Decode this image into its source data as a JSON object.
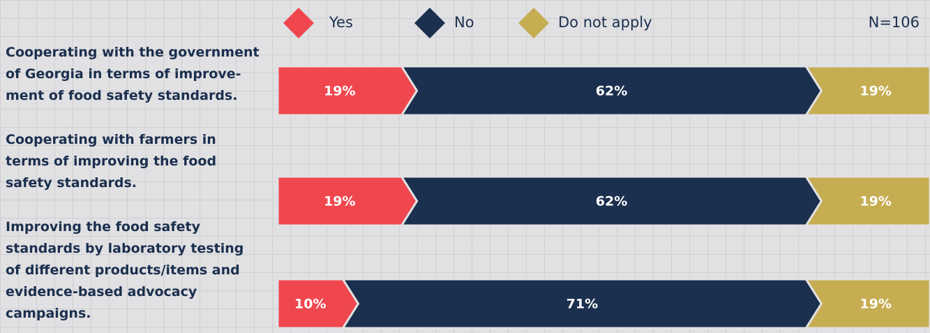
{
  "chart_data": {
    "type": "stacked-bar-horizontal",
    "annotation": "N=106",
    "categories": [
      "Cooperating with the government\nof Georgia in terms of improve-\nment of food safety standards.",
      "Cooperating with farmers in\nterms of improving the food\nsafety standards.",
      "Improving the food safety\nstandards by laboratory testing\nof different products/items and\nevidence-based advocacy\ncampaigns."
    ],
    "series": [
      {
        "name": "Yes",
        "color": "#f0474f",
        "values": [
          19,
          19,
          10
        ],
        "value_labels": [
          "19%",
          "19%",
          "10%"
        ]
      },
      {
        "name": "No",
        "color": "#1b2f4e",
        "values": [
          62,
          62,
          71
        ],
        "value_labels": [
          "62%",
          "62%",
          "71%"
        ]
      },
      {
        "name": "Do not apply",
        "color": "#c6ad52",
        "values": [
          19,
          19,
          19
        ],
        "value_labels": [
          "19%",
          "19%",
          "19%"
        ]
      }
    ],
    "xlim": [
      0,
      100
    ],
    "legend": "top"
  }
}
